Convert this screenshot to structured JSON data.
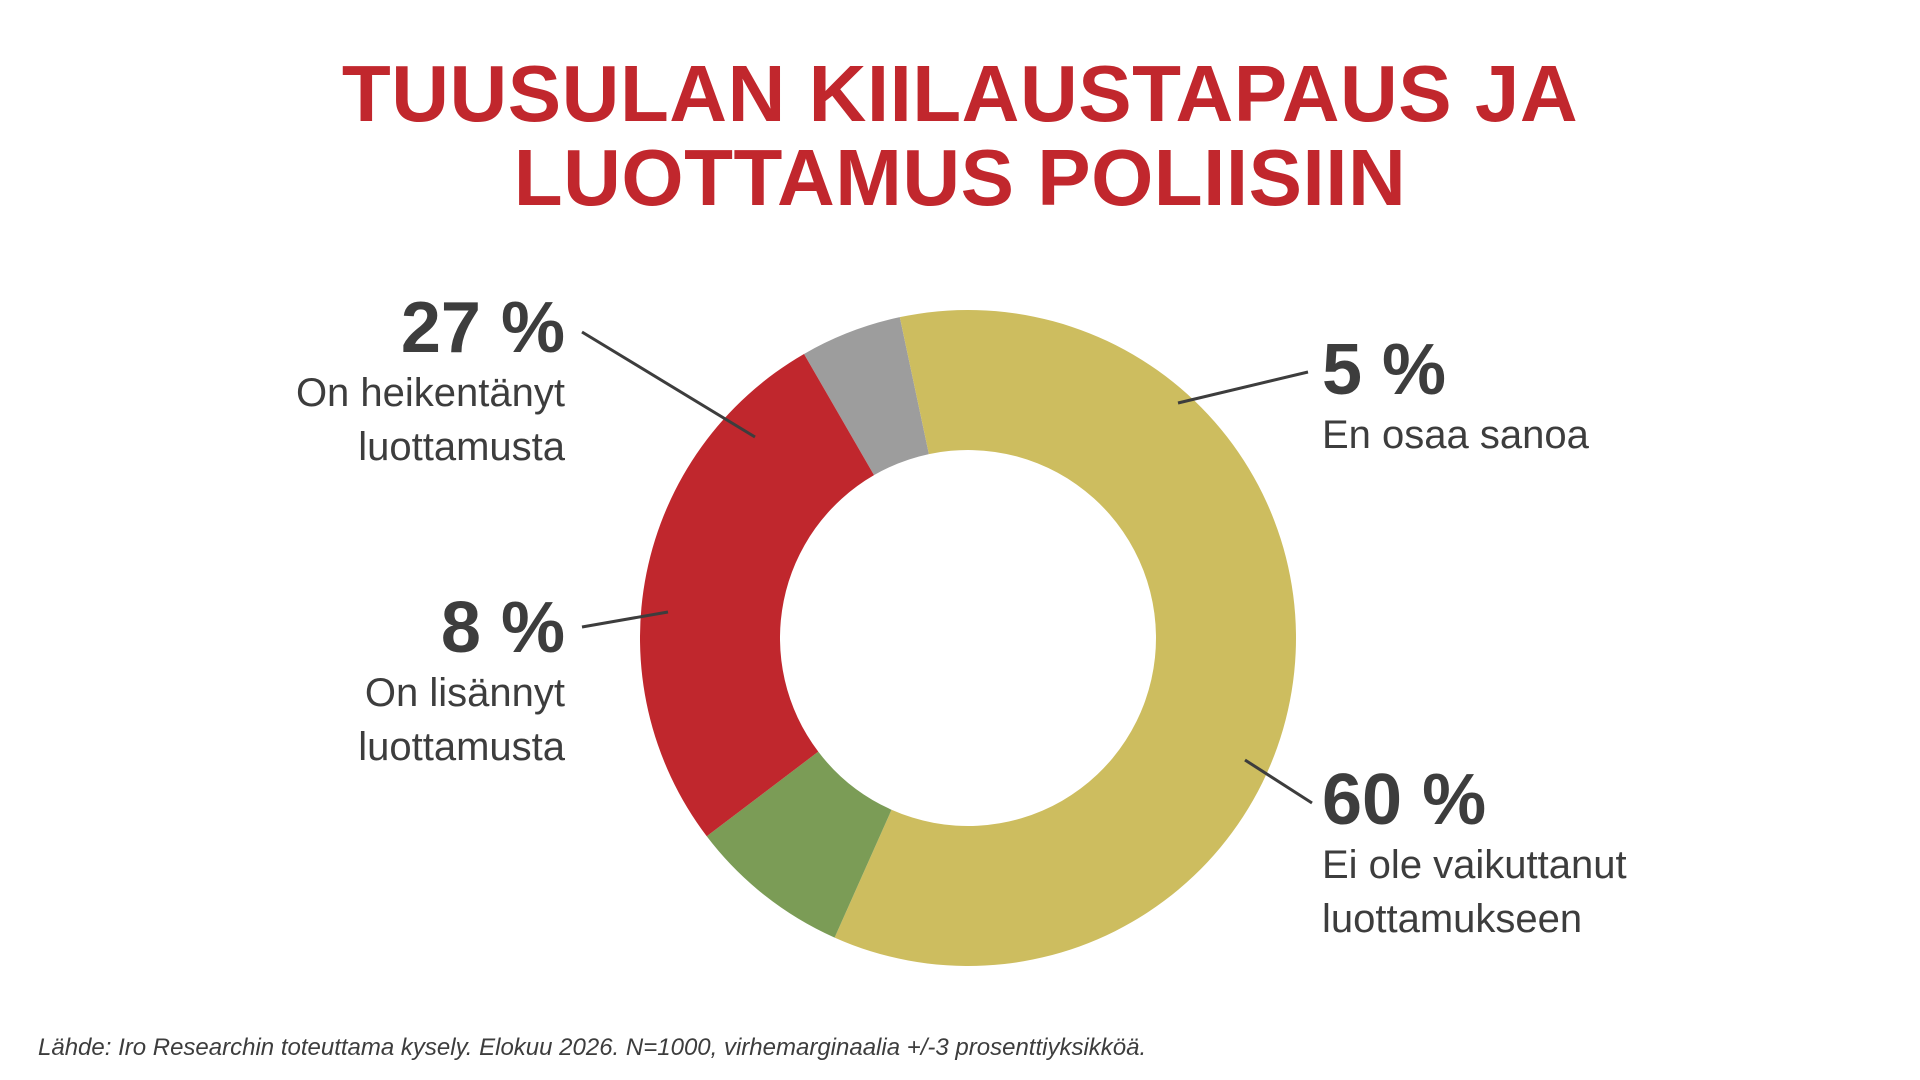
{
  "title": {
    "line1": "TUUSULAN KIILAUSTAPAUS JA",
    "line2": "LUOTTAMUS POLIISIIN",
    "color": "#c1272d"
  },
  "chart_data": {
    "type": "pie",
    "donut": true,
    "start_angle_deg": -30,
    "slices": [
      {
        "label_pct": "5 %",
        "label": "En osaa sanoa",
        "value": 5,
        "color": "#9d9d9d"
      },
      {
        "label_pct": "60 %",
        "label": "Ei ole vaikuttanut luottamukseen",
        "value": 60,
        "color": "#cdbd5f"
      },
      {
        "label_pct": "8 %",
        "label": "On lisännyt luottamusta",
        "value": 8,
        "color": "#7b9c56"
      },
      {
        "label_pct": "27 %",
        "label": "On heikentänyt luottamusta",
        "value": 27,
        "color": "#c0272d"
      }
    ]
  },
  "labels": {
    "weakened": {
      "pct": "27 %",
      "line1": "On heikentänyt",
      "line2": "luottamusta"
    },
    "unknown": {
      "pct": "5 %",
      "line1": "En osaa sanoa"
    },
    "increased": {
      "pct": "8 %",
      "line1": "On lisännyt",
      "line2": "luottamusta"
    },
    "noeffect": {
      "pct": "60 %",
      "line1": "Ei ole vaikuttanut",
      "line2": "luottamukseen"
    }
  },
  "source": "Lähde: Iro Researchin toteuttama kysely. Elokuu 2026. N=1000, virhemarginaalia +/-3 prosenttiyksikköä."
}
